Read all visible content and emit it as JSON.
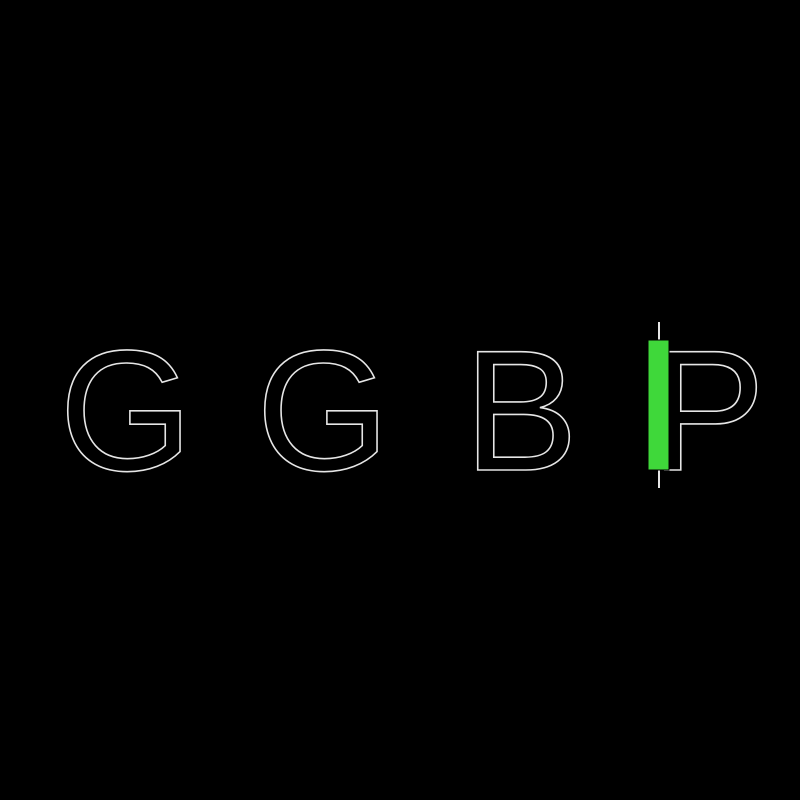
{
  "logo": {
    "letters": [
      "G",
      "G",
      "B",
      "P"
    ]
  }
}
